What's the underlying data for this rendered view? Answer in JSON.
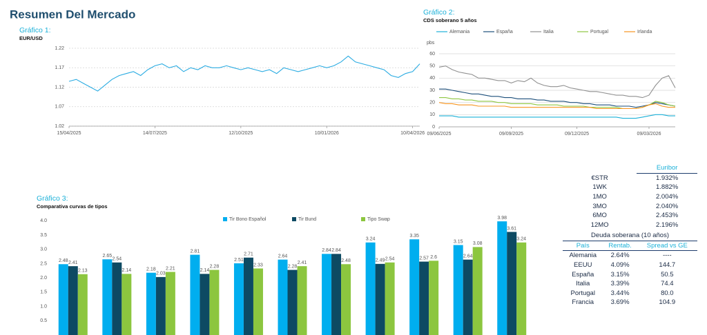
{
  "header": {
    "title": "Resumen Del Mercado"
  },
  "chart_data": [
    {
      "type": "line",
      "title": "Gráfico 1:",
      "subtitle": "EUR/USD",
      "color": "#29abe2",
      "categories": [
        "15/04/2025",
        null,
        null,
        null,
        null,
        null,
        null,
        null,
        null,
        null,
        null,
        null,
        "14/07/2025",
        null,
        null,
        null,
        null,
        null,
        null,
        null,
        null,
        null,
        null,
        null,
        "12/10/2025",
        null,
        null,
        null,
        null,
        null,
        null,
        null,
        null,
        null,
        null,
        null,
        "10/01/2026",
        null,
        null,
        null,
        null,
        null,
        null,
        null,
        null,
        null,
        null,
        null,
        "10/04/2026",
        null
      ],
      "values": [
        1.135,
        1.14,
        1.13,
        1.12,
        1.11,
        1.125,
        1.14,
        1.15,
        1.155,
        1.16,
        1.15,
        1.165,
        1.175,
        1.18,
        1.17,
        1.175,
        1.16,
        1.17,
        1.165,
        1.175,
        1.17,
        1.17,
        1.175,
        1.17,
        1.165,
        1.17,
        1.165,
        1.16,
        1.165,
        1.155,
        1.17,
        1.165,
        1.16,
        1.165,
        1.17,
        1.175,
        1.17,
        1.175,
        1.185,
        1.2,
        1.185,
        1.18,
        1.175,
        1.17,
        1.165,
        1.15,
        1.145,
        1.155,
        1.16,
        1.18
      ],
      "ylim": [
        1.02,
        1.22
      ],
      "yticks": [
        1.02,
        1.07,
        1.12,
        1.17,
        1.22
      ],
      "grid": "dashed"
    },
    {
      "type": "line",
      "title": "Gráfico 2:",
      "subtitle": "CDS soberano 5 años",
      "y_label": "pbs",
      "categories": [
        "09/06/2025",
        null,
        null,
        null,
        null,
        null,
        null,
        null,
        null,
        null,
        null,
        "09/09/2025",
        null,
        null,
        null,
        null,
        null,
        null,
        null,
        null,
        null,
        "09/12/2025",
        null,
        null,
        null,
        null,
        null,
        null,
        null,
        null,
        null,
        null,
        "09/03/2026",
        null,
        null,
        null,
        null
      ],
      "series": [
        {
          "name": "Alemania",
          "color": "#1ab0d8",
          "values": [
            9,
            9,
            9,
            8,
            8,
            8,
            8,
            8,
            8,
            8,
            8,
            8,
            8,
            8,
            8,
            8,
            8,
            8,
            8,
            8,
            8,
            8,
            8,
            8,
            8,
            8,
            8,
            8,
            7,
            7,
            7,
            8,
            9,
            10,
            10,
            9,
            9
          ]
        },
        {
          "name": "España",
          "color": "#1b4e7a",
          "values": [
            31,
            31,
            30,
            29,
            28,
            27,
            27,
            26,
            25,
            25,
            24,
            24,
            23,
            23,
            23,
            22,
            22,
            21,
            21,
            21,
            20,
            20,
            19,
            19,
            18,
            18,
            18,
            17,
            17,
            17,
            16,
            17,
            18,
            20,
            19,
            18,
            17
          ]
        },
        {
          "name": "Italia",
          "color": "#8f8f8f",
          "values": [
            49,
            50,
            47,
            45,
            44,
            43,
            40,
            40,
            39,
            38,
            38,
            36,
            38,
            37,
            40,
            36,
            34,
            33,
            33,
            34,
            32,
            31,
            30,
            29,
            29,
            28,
            27,
            26,
            26,
            25,
            25,
            24,
            26,
            34,
            40,
            42,
            32
          ]
        },
        {
          "name": "Portugal",
          "color": "#8dc63f",
          "values": [
            24,
            24,
            23,
            23,
            22,
            22,
            21,
            21,
            21,
            20,
            20,
            19,
            19,
            19,
            19,
            18,
            18,
            18,
            18,
            17,
            17,
            17,
            17,
            16,
            16,
            16,
            16,
            16,
            15,
            15,
            15,
            16,
            18,
            21,
            20,
            18,
            17
          ]
        },
        {
          "name": "Irlanda",
          "color": "#f7941d",
          "values": [
            20,
            19,
            19,
            18,
            18,
            18,
            17,
            17,
            17,
            17,
            17,
            16,
            16,
            16,
            16,
            16,
            16,
            16,
            16,
            16,
            16,
            16,
            16,
            16,
            15,
            15,
            15,
            15,
            15,
            15,
            15,
            16,
            18,
            19,
            17,
            16,
            16
          ]
        }
      ],
      "ylim": [
        0,
        60
      ],
      "yticks": [
        0,
        10,
        20,
        30,
        40,
        50,
        60
      ],
      "grid": "solid",
      "legend": "top"
    },
    {
      "type": "bar",
      "title": "Gráfico 3:",
      "subtitle": "Comparativa curvas de tipos",
      "categories": [
        null,
        null,
        null,
        null,
        null,
        null,
        null,
        null,
        null,
        null,
        null
      ],
      "series": [
        {
          "name": "Tir Bono Español",
          "color": "#00aeef",
          "values": [
            2.48,
            2.65,
            2.18,
            2.81,
            2.51,
            2.64,
            2.84,
            3.24,
            3.35,
            3.15,
            3.98
          ]
        },
        {
          "name": "Tir Bund",
          "color": "#0d4a63",
          "values": [
            2.41,
            2.54,
            2.03,
            2.14,
            2.71,
            2.28,
            2.84,
            2.49,
            2.57,
            2.64,
            3.61
          ]
        },
        {
          "name": "Tipo Swap",
          "color": "#8cc63f",
          "values": [
            2.13,
            2.14,
            2.21,
            2.28,
            2.33,
            2.41,
            2.48,
            2.54,
            2.6,
            3.08,
            3.24
          ]
        }
      ],
      "ylim": [
        0,
        4.2
      ],
      "yticks": [
        {
          "value": 0.5,
          "label": "0.5"
        },
        {
          "value": 1,
          "label": "1.0"
        },
        1.5,
        {
          "value": 2,
          "label": "2.0"
        },
        2.5,
        {
          "value": 3,
          "label": "3.0"
        },
        3.5,
        {
          "value": 4,
          "label": "4.0"
        }
      ],
      "grid": false,
      "legend": "top"
    }
  ],
  "table": {
    "euribor": {
      "header": "Euribor",
      "rows": [
        [
          "€STR",
          "1.932%"
        ],
        [
          "1WK",
          "1.882%"
        ],
        [
          "1MO",
          "2.004%"
        ],
        [
          "3MO",
          "2.040%"
        ],
        [
          "6MO",
          "2.453%"
        ],
        [
          "12MO",
          "2.196%"
        ]
      ]
    },
    "deuda": {
      "title": "Deuda soberana (10 años)",
      "header": [
        "País",
        "Rentab.",
        "Spread vs GE"
      ],
      "rows": [
        [
          "Alemania",
          "2.64%",
          "----"
        ],
        [
          "EEUU",
          "4.09%",
          "144.7"
        ],
        [
          "España",
          "3.15%",
          "50.5"
        ],
        [
          "Italia",
          "3.39%",
          "74.4"
        ],
        [
          "Portugal",
          "3.44%",
          "80.0"
        ],
        [
          "Francia",
          "3.69%",
          "104.9"
        ]
      ]
    }
  }
}
